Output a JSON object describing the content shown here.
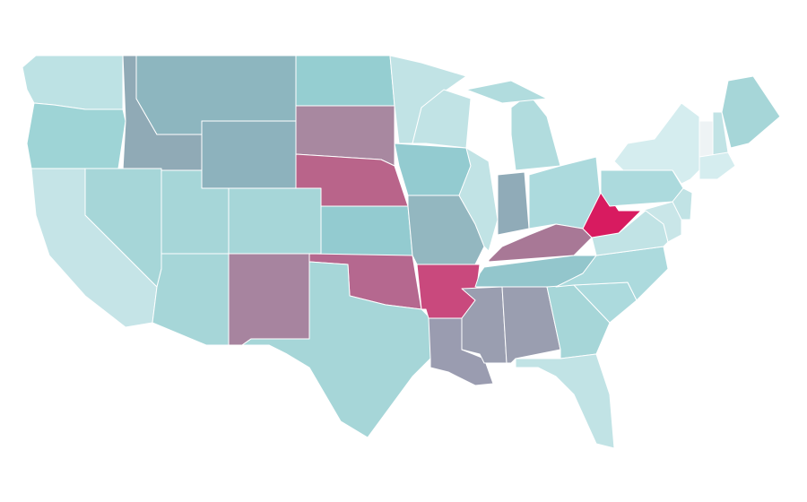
{
  "map": {
    "regions": [
      {
        "color": "#bde2e4"
      },
      {
        "color": "#9ed4d6"
      },
      {
        "color": "#c5e4e7"
      },
      {
        "color": "#90aab6"
      },
      {
        "color": "#a6d6d8"
      },
      {
        "color": "#8db6bf"
      },
      {
        "color": "#8db2bd"
      },
      {
        "color": "#a6d6d8"
      },
      {
        "color": "#a6d6d8"
      },
      {
        "color": "#a6d6d8"
      },
      {
        "color": "#a7849f"
      },
      {
        "color": "#95ced1"
      },
      {
        "color": "#a888a0"
      },
      {
        "color": "#b9648a"
      },
      {
        "color": "#93cbd0"
      },
      {
        "color": "#b5688f"
      },
      {
        "color": "#a6d6d8"
      },
      {
        "color": "#c1e3e5"
      },
      {
        "color": "#93cbd0"
      },
      {
        "color": "#93b7c0"
      },
      {
        "color": "#c9497d"
      },
      {
        "color": "#9a9cb0"
      },
      {
        "color": "#c1e3e5"
      },
      {
        "color": "#c1e3e5"
      },
      {
        "color": "#b1dcde"
      },
      {
        "color": "#b1dcde"
      },
      {
        "color": "#90abb8"
      },
      {
        "color": "#acdadd"
      },
      {
        "color": "#a87896"
      },
      {
        "color": "#93c6cc"
      },
      {
        "color": "#9a9eb0"
      },
      {
        "color": "#9a9eb0"
      },
      {
        "color": "#a6d6d8"
      },
      {
        "color": "#c1e3e5"
      },
      {
        "color": "#acdadd"
      },
      {
        "color": "#acdadd"
      },
      {
        "color": "#c1e3e5"
      },
      {
        "color": "#d81b60"
      },
      {
        "color": "#acdadd"
      },
      {
        "color": "#d5edef"
      },
      {
        "color": "#c9e6e8"
      },
      {
        "color": "#c1e3e5"
      },
      {
        "color": "#eef3f5"
      },
      {
        "color": "#c1e3e5"
      },
      {
        "color": "#a6d6d8"
      },
      {
        "color": "#d5edef"
      }
    ]
  }
}
